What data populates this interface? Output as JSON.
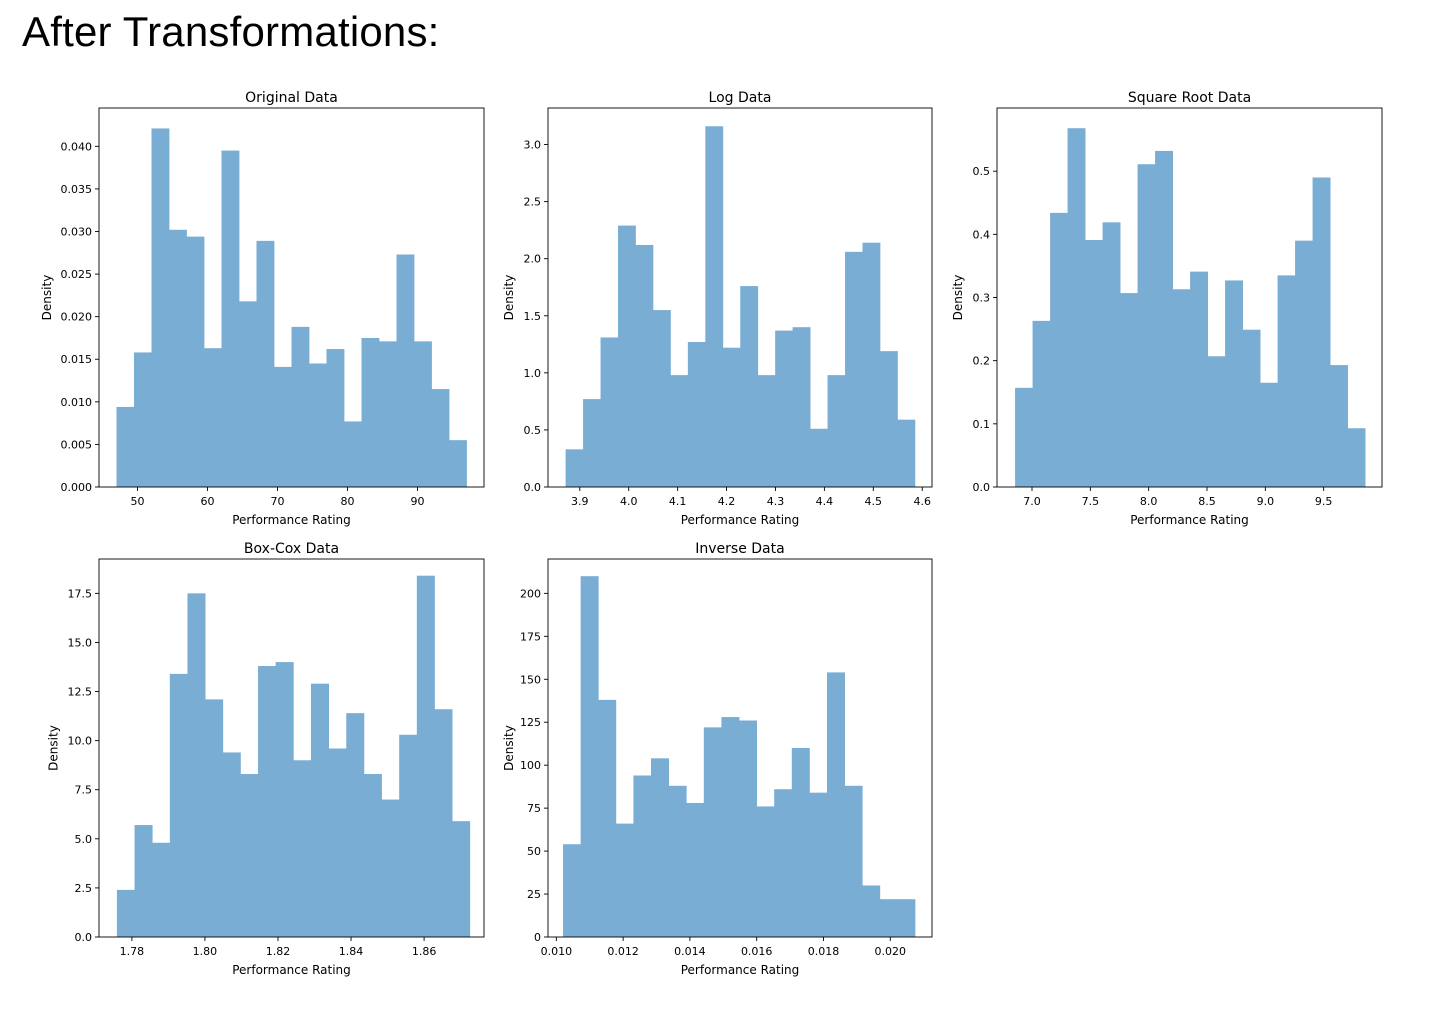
{
  "heading": "After Transformations:",
  "chart_data": [
    {
      "type": "bar",
      "title": "Original Data",
      "xlabel": "Performance Rating",
      "ylabel": "Density",
      "xlim": [
        44.5,
        99.5
      ],
      "ylim": [
        0,
        0.0445
      ],
      "bar_color": "#7aadd3",
      "grid": false,
      "bin_start": 47,
      "bin_width": 2.5,
      "values": [
        0.0094,
        0.0158,
        0.0421,
        0.0302,
        0.0294,
        0.0163,
        0.0395,
        0.0218,
        0.0289,
        0.0141,
        0.0188,
        0.0145,
        0.0162,
        0.0077,
        0.0175,
        0.0171,
        0.0273,
        0.0171,
        0.0115,
        0.0055
      ],
      "xticks": [
        50,
        60,
        70,
        80,
        90
      ],
      "xtick_labels": [
        "50",
        "60",
        "70",
        "80",
        "90"
      ],
      "yticks": [
        0,
        0.005,
        0.01,
        0.015,
        0.02,
        0.025,
        0.03,
        0.035,
        0.04
      ],
      "ytick_labels": [
        "0.000",
        "0.005",
        "0.010",
        "0.015",
        "0.020",
        "0.025",
        "0.030",
        "0.035",
        "0.040"
      ]
    },
    {
      "type": "bar",
      "title": "Log Data",
      "xlabel": "Performance Rating",
      "ylabel": "Density",
      "xlim": [
        3.835,
        4.62
      ],
      "ylim": [
        0,
        3.32
      ],
      "bar_color": "#7aadd3",
      "grid": false,
      "bin_start": 3.871,
      "bin_width": 0.0357,
      "values": [
        0.33,
        0.77,
        1.31,
        2.29,
        2.12,
        1.55,
        0.98,
        1.27,
        3.16,
        1.22,
        1.76,
        0.98,
        1.37,
        1.4,
        0.51,
        0.98,
        2.06,
        2.14,
        1.19,
        0.59
      ],
      "xticks": [
        3.9,
        4.0,
        4.1,
        4.2,
        4.3,
        4.4,
        4.5,
        4.6
      ],
      "xtick_labels": [
        "3.9",
        "4.0",
        "4.1",
        "4.2",
        "4.3",
        "4.4",
        "4.5",
        "4.6"
      ],
      "yticks": [
        0,
        0.5,
        1.0,
        1.5,
        2.0,
        2.5,
        3.0
      ],
      "ytick_labels": [
        "0.0",
        "0.5",
        "1.0",
        "1.5",
        "2.0",
        "2.5",
        "3.0"
      ]
    },
    {
      "type": "bar",
      "title": "Square Root Data",
      "xlabel": "Performance Rating",
      "ylabel": "Density",
      "xlim": [
        6.7,
        10.0
      ],
      "ylim": [
        0,
        0.6
      ],
      "bar_color": "#7aadd3",
      "grid": false,
      "bin_start": 6.855,
      "bin_width": 0.15,
      "values": [
        0.157,
        0.263,
        0.434,
        0.568,
        0.391,
        0.419,
        0.307,
        0.511,
        0.532,
        0.313,
        0.341,
        0.207,
        0.327,
        0.249,
        0.165,
        0.335,
        0.39,
        0.49,
        0.193,
        0.093
      ],
      "xticks": [
        7.0,
        7.5,
        8.0,
        8.5,
        9.0,
        9.5
      ],
      "xtick_labels": [
        "7.0",
        "7.5",
        "8.0",
        "8.5",
        "9.0",
        "9.5"
      ],
      "yticks": [
        0,
        0.1,
        0.2,
        0.3,
        0.4,
        0.5
      ],
      "ytick_labels": [
        "0.0",
        "0.1",
        "0.2",
        "0.3",
        "0.4",
        "0.5"
      ]
    },
    {
      "type": "bar",
      "title": "Box-Cox Data",
      "xlabel": "Performance Rating",
      "ylabel": "Density",
      "xlim": [
        1.771,
        1.8764
      ],
      "ylim": [
        0,
        19.25
      ],
      "bar_color": "#7aadd3",
      "grid": false,
      "bin_start": 1.7759,
      "bin_width": 0.00483,
      "values": [
        2.4,
        5.7,
        4.8,
        13.4,
        17.5,
        12.1,
        9.4,
        8.3,
        13.8,
        14.0,
        9.0,
        12.9,
        9.6,
        11.4,
        8.3,
        7.0,
        10.3,
        18.4,
        11.6,
        5.9
      ],
      "xticks": [
        1.78,
        1.8,
        1.82,
        1.84,
        1.86
      ],
      "xtick_labels": [
        "1.78",
        "1.80",
        "1.82",
        "1.84",
        "1.86"
      ],
      "yticks": [
        0,
        2.5,
        5.0,
        7.5,
        10.0,
        12.5,
        15.0,
        17.5
      ],
      "ytick_labels": [
        "0.0",
        "2.5",
        "5.0",
        "7.5",
        "10.0",
        "12.5",
        "15.0",
        "17.5"
      ]
    },
    {
      "type": "bar",
      "title": "Inverse Data",
      "xlabel": "Performance Rating",
      "ylabel": "Density",
      "xlim": [
        0.00975,
        0.02125
      ],
      "ylim": [
        0,
        220
      ],
      "bar_color": "#7aadd3",
      "grid": false,
      "bin_start": 0.0102,
      "bin_width": 0.000527,
      "values": [
        54,
        210,
        138,
        66,
        94,
        104,
        88,
        78,
        122,
        128,
        126,
        76,
        86,
        110,
        84,
        154,
        88,
        30,
        22,
        22
      ],
      "xticks": [
        0.01,
        0.012,
        0.014,
        0.016,
        0.018,
        0.02
      ],
      "xtick_labels": [
        "0.010",
        "0.012",
        "0.014",
        "0.016",
        "0.018",
        "0.020"
      ],
      "yticks": [
        0,
        25,
        50,
        75,
        100,
        125,
        150,
        175,
        200
      ],
      "ytick_labels": [
        "0",
        "25",
        "50",
        "75",
        "100",
        "125",
        "150",
        "175",
        "200"
      ]
    }
  ]
}
